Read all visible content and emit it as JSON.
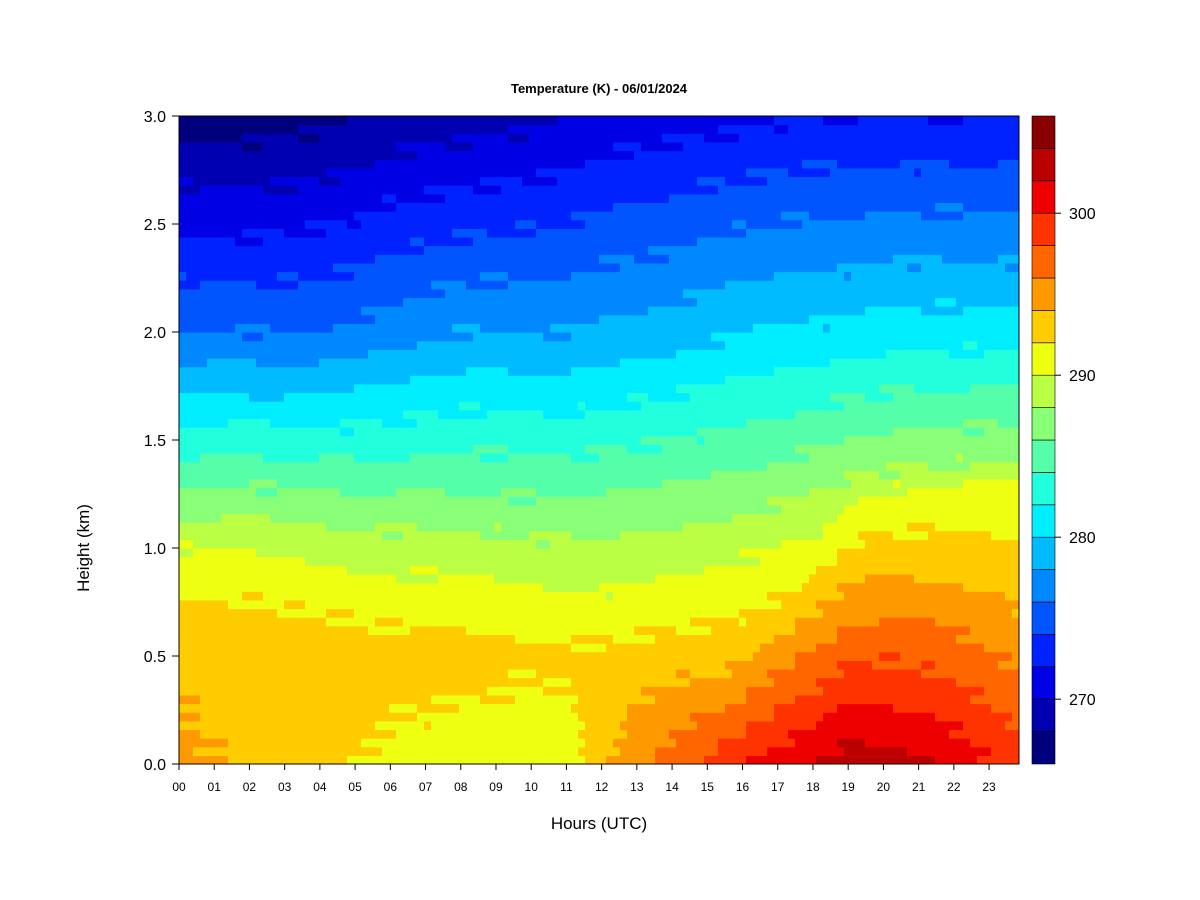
{
  "chart_data": {
    "type": "heatmap",
    "title": "Temperature (K) - 06/01/2024",
    "xlabel": "Hours (UTC)",
    "ylabel": "Height (km)",
    "xlim": [
      0,
      23.85
    ],
    "ylim": [
      0,
      3.0
    ],
    "x_ticks": [
      "00",
      "01",
      "02",
      "03",
      "04",
      "05",
      "06",
      "07",
      "08",
      "09",
      "10",
      "11",
      "12",
      "13",
      "14",
      "15",
      "16",
      "17",
      "18",
      "19",
      "20",
      "21",
      "22",
      "23"
    ],
    "y_ticks": [
      "0.0",
      "0.5",
      "1.0",
      "1.5",
      "2.0",
      "2.5",
      "3.0"
    ],
    "colorbar": {
      "range": [
        266,
        306
      ],
      "step": 2,
      "tick_labels": [
        "270",
        "280",
        "290",
        "300"
      ],
      "colors": [
        "#00007f",
        "#0000b2",
        "#0000e5",
        "#0022ff",
        "#0055ff",
        "#0088ff",
        "#00bbff",
        "#00eeff",
        "#22ffdd",
        "#55ffaa",
        "#88ff77",
        "#bbff44",
        "#eeff11",
        "#ffcc00",
        "#ff9900",
        "#ff6600",
        "#ff3300",
        "#ee0000",
        "#bb0000",
        "#880000"
      ]
    },
    "profiles": {
      "hours": [
        0,
        2,
        4,
        6,
        8,
        10,
        11,
        12,
        14,
        16,
        18,
        19,
        20,
        22,
        23.85
      ],
      "surface_temperature_k": [
        294.5,
        293.5,
        292.5,
        291.5,
        290.5,
        290.5,
        290.5,
        293.5,
        297,
        300,
        302,
        303,
        303,
        301.5,
        299
      ],
      "boundary_layer_top_km": [
        0.6,
        0.6,
        0.5,
        0.5,
        0.5,
        0.5,
        0.5,
        0.4,
        0.4,
        0.5,
        1.0,
        1.2,
        1.3,
        1.3,
        1.3
      ],
      "temperature_at_1km_k": [
        290,
        290,
        289.5,
        289,
        289,
        288.5,
        288.5,
        288.5,
        289,
        289.5,
        290.5,
        291.5,
        292,
        292.5,
        292.5
      ],
      "temperature_at_2km_k": [
        276,
        276,
        276,
        277,
        278,
        278,
        278,
        278.5,
        279,
        280,
        280.5,
        280.5,
        281,
        281,
        281
      ],
      "temperature_at_3km_k": [
        267,
        267,
        267.5,
        268.5,
        269,
        269.5,
        270,
        270.5,
        271,
        271.5,
        272,
        272,
        272,
        272,
        272
      ]
    }
  }
}
